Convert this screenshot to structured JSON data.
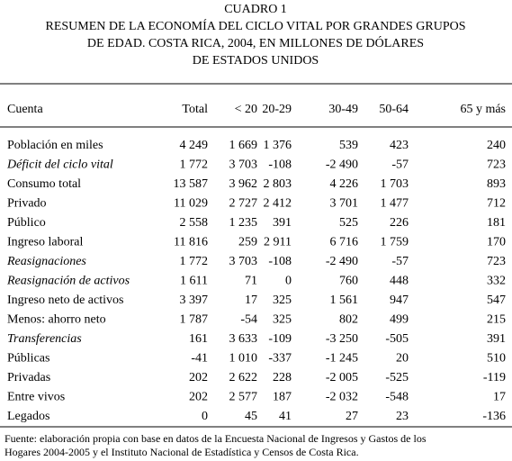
{
  "header": {
    "label": "CUADRO 1",
    "title_lines": [
      "RESUMEN DE LA ECONOMÍA DEL CICLO VITAL POR GRANDES GRUPOS",
      "DE EDAD. COSTA RICA, 2004, EN MILLONES DE DÓLARES",
      "DE ESTADOS UNIDOS"
    ]
  },
  "table": {
    "columns": [
      "Cuenta",
      "Total",
      "< 20",
      "20-29",
      "30-49",
      "50-64",
      "65 y más"
    ],
    "rows": [
      {
        "label": "Población en miles",
        "values": [
          "4 249",
          "1 669",
          "1 376",
          "539",
          "423",
          "240"
        ]
      },
      {
        "label": "Déficit del ciclo vital",
        "italic": true,
        "values": [
          "1 772",
          "3 703",
          "-108",
          "-2 490",
          "-57",
          "723"
        ]
      },
      {
        "label": "Consumo total",
        "values": [
          "13 587",
          "3 962",
          "2 803",
          "4 226",
          "1 703",
          "893"
        ]
      },
      {
        "label": "Privado",
        "values": [
          "11 029",
          "2 727",
          "2 412",
          "3 701",
          "1 477",
          "712"
        ]
      },
      {
        "label": "Público",
        "values": [
          "2 558",
          "1 235",
          "391",
          "525",
          "226",
          "181"
        ]
      },
      {
        "label": "Ingreso laboral",
        "values": [
          "11 816",
          "259",
          "2 911",
          "6 716",
          "1 759",
          "170"
        ]
      },
      {
        "label": "Reasignaciones",
        "italic": true,
        "values": [
          "1 772",
          "3 703",
          "-108",
          "-2 490",
          "-57",
          "723"
        ]
      },
      {
        "label": "Reasignación de activos",
        "italic": true,
        "values": [
          "1 611",
          "71",
          "0",
          "760",
          "448",
          "332"
        ]
      },
      {
        "label": "Ingreso neto de activos",
        "values": [
          "3 397",
          "17",
          "325",
          "1 561",
          "947",
          "547"
        ]
      },
      {
        "label": "Menos: ahorro neto",
        "values": [
          "1 787",
          "-54",
          "325",
          "802",
          "499",
          "215"
        ]
      },
      {
        "label": "Transferencias",
        "italic": true,
        "values": [
          "161",
          "3 633",
          "-109",
          "-3 250",
          "-505",
          "391"
        ]
      },
      {
        "label": "Públicas",
        "values": [
          "-41",
          "1 010",
          "-337",
          "-1 245",
          "20",
          "510"
        ]
      },
      {
        "label": "Privadas",
        "values": [
          "202",
          "2 622",
          "228",
          "-2 005",
          "-525",
          "-119"
        ]
      },
      {
        "label": "Entre vivos",
        "values": [
          "202",
          "2 577",
          "187",
          "-2 032",
          "-548",
          "17"
        ]
      },
      {
        "label": "Legados",
        "values": [
          "0",
          "45",
          "41",
          "27",
          "23",
          "-136"
        ]
      }
    ]
  },
  "footnote_lines": [
    "Fuente: elaboración propia con base en datos de la Encuesta Nacional de Ingresos y Gastos de los",
    "Hogares 2004-2005 y el Instituto Nacional de Estadística y Censos de Costa Rica."
  ]
}
